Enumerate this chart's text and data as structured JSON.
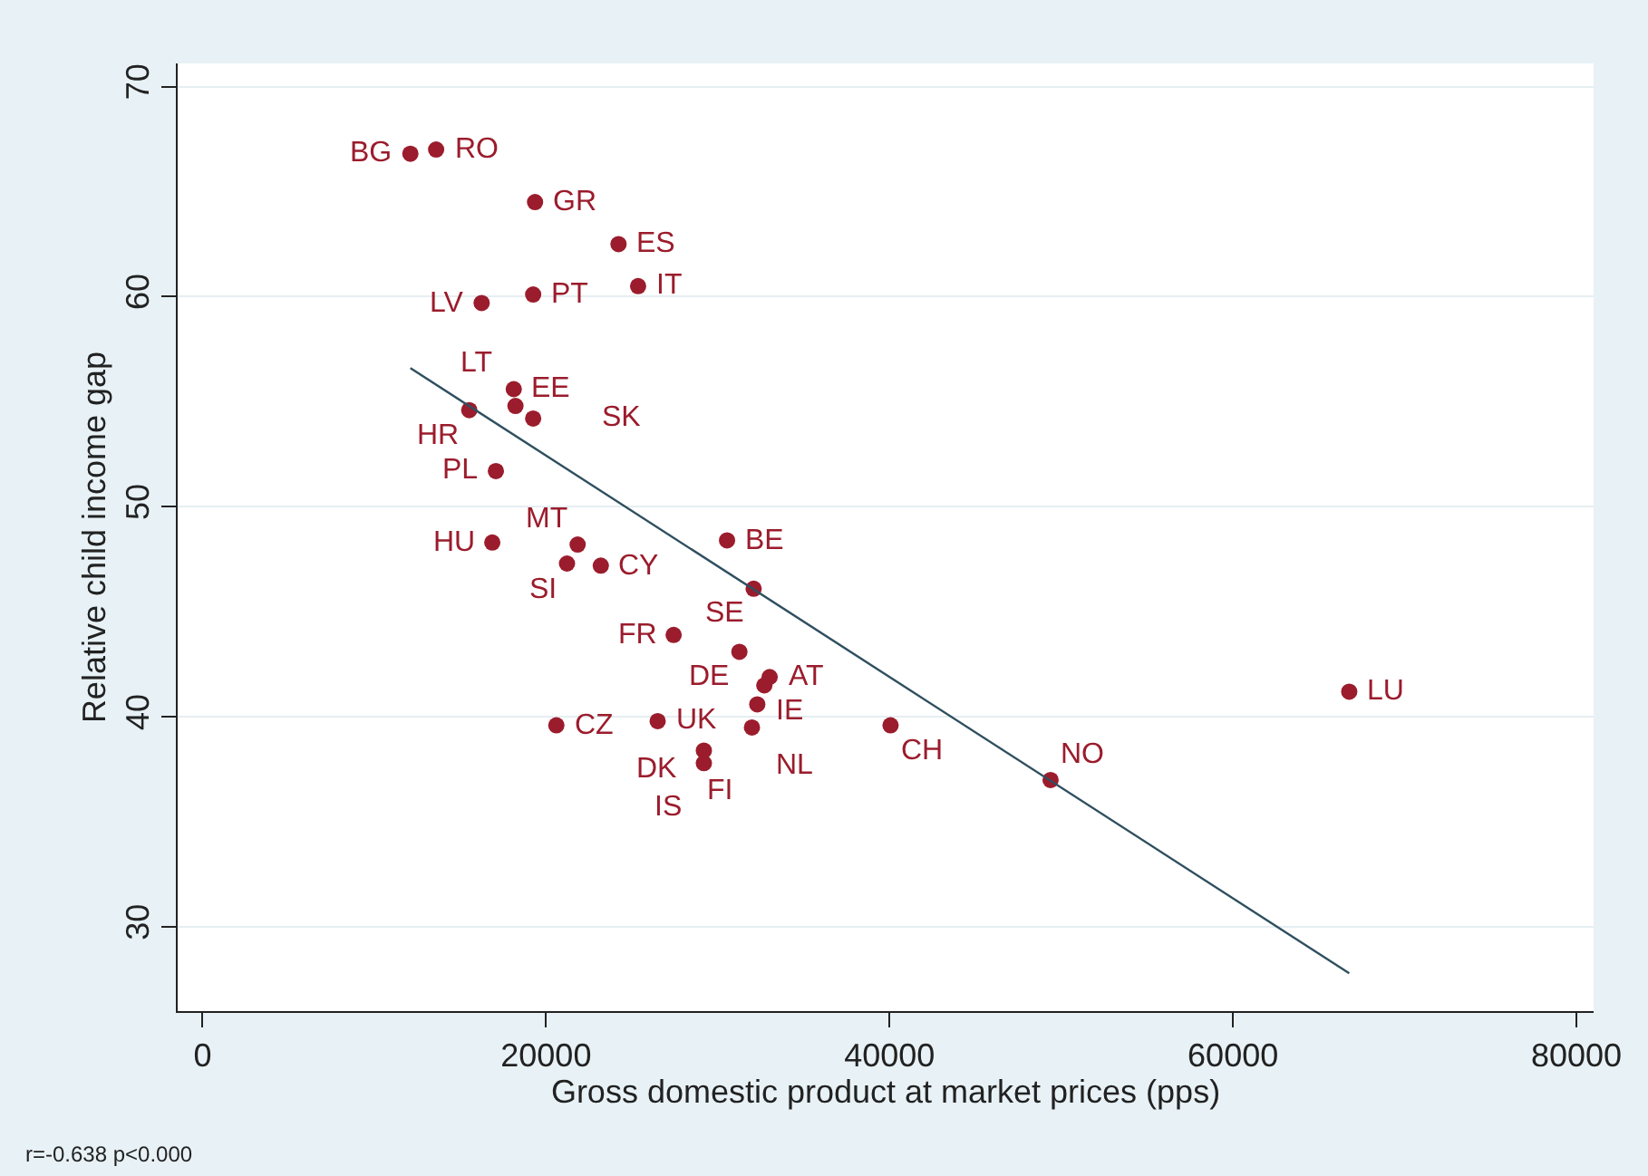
{
  "chart_data": {
    "type": "scatter",
    "xlabel": "Gross domestic product at market prices (pps)",
    "ylabel": "Relative child income gap",
    "xlim": [
      -1450,
      81000
    ],
    "xticks": [
      0,
      20000,
      40000,
      60000,
      80000
    ],
    "ylim": [
      26.0,
      71.1
    ],
    "yticks": [
      30,
      40,
      50,
      60,
      70
    ],
    "grid": "y",
    "marker": "circle",
    "series": [
      {
        "color": "#9b1c2c",
        "x": [
          12100,
          13600,
          19360,
          24220,
          25360,
          19250,
          16250,
          18120,
          15530,
          18220,
          19250,
          17080,
          16870,
          21840,
          21220,
          23190,
          30540,
          32090,
          27430,
          31260,
          33020,
          32710,
          32300,
          20600,
          26500,
          31990,
          40060,
          29190,
          29190,
          49380,
          66770
        ],
        "values": [
          66.8,
          67.0,
          64.5,
          62.5,
          60.5,
          60.1,
          59.7,
          55.6,
          54.6,
          54.8,
          54.2,
          51.7,
          48.3,
          48.2,
          47.3,
          47.2,
          48.4,
          46.1,
          43.9,
          43.1,
          41.9,
          41.5,
          40.6,
          39.6,
          39.8,
          39.5,
          39.6,
          38.4,
          37.8,
          37.0,
          41.2
        ]
      },
      {
        "type": "line",
        "color": "#2f4f5f",
        "marker": "none",
        "x": [
          12100,
          66770
        ],
        "values": [
          56.6,
          27.8
        ]
      }
    ],
    "annotations": [
      {
        "text": "BG",
        "x": 12100,
        "y": 66.8
      },
      {
        "text": "RO",
        "x": 13600,
        "y": 67.0
      },
      {
        "text": "GR",
        "x": 19360,
        "y": 64.5
      },
      {
        "text": "ES",
        "x": 24220,
        "y": 62.5
      },
      {
        "text": "IT",
        "x": 25360,
        "y": 60.5
      },
      {
        "text": "PT",
        "x": 19250,
        "y": 60.1
      },
      {
        "text": "LV",
        "x": 16250,
        "y": 59.7
      },
      {
        "text": "EE",
        "x": 18120,
        "y": 55.6
      },
      {
        "text": "HR",
        "x": 15530,
        "y": 54.6
      },
      {
        "text": "LT",
        "x": 18220,
        "y": 54.8
      },
      {
        "text": "SK",
        "x": 19250,
        "y": 54.2
      },
      {
        "text": "PL",
        "x": 17080,
        "y": 51.7
      },
      {
        "text": "HU",
        "x": 16870,
        "y": 48.3
      },
      {
        "text": "MT",
        "x": 21840,
        "y": 48.2
      },
      {
        "text": "SI",
        "x": 21220,
        "y": 47.3
      },
      {
        "text": "CY",
        "x": 23190,
        "y": 47.2
      },
      {
        "text": "BE",
        "x": 30540,
        "y": 48.4
      },
      {
        "text": "SE",
        "x": 32090,
        "y": 46.1
      },
      {
        "text": "FR",
        "x": 27430,
        "y": 43.9
      },
      {
        "text": "DE",
        "x": 31260,
        "y": 43.1
      },
      {
        "text": "AT",
        "x": 33020,
        "y": 41.9
      },
      {
        "text": "IE",
        "x": 32710,
        "y": 41.5
      },
      {
        "text": "NL",
        "x": 32300,
        "y": 40.6
      },
      {
        "text": "CZ",
        "x": 20600,
        "y": 39.6
      },
      {
        "text": "UK",
        "x": 26500,
        "y": 39.8
      },
      {
        "text": "DK",
        "x": 31990,
        "y": 39.5
      },
      {
        "text": "CH",
        "x": 40060,
        "y": 39.6
      },
      {
        "text": "FI",
        "x": 29190,
        "y": 38.4
      },
      {
        "text": "IS",
        "x": 29190,
        "y": 37.8
      },
      {
        "text": "NO",
        "x": 49380,
        "y": 37.0
      },
      {
        "text": "LU",
        "x": 66770,
        "y": 41.2
      },
      "r=-0.638 p<0.000"
    ]
  }
}
